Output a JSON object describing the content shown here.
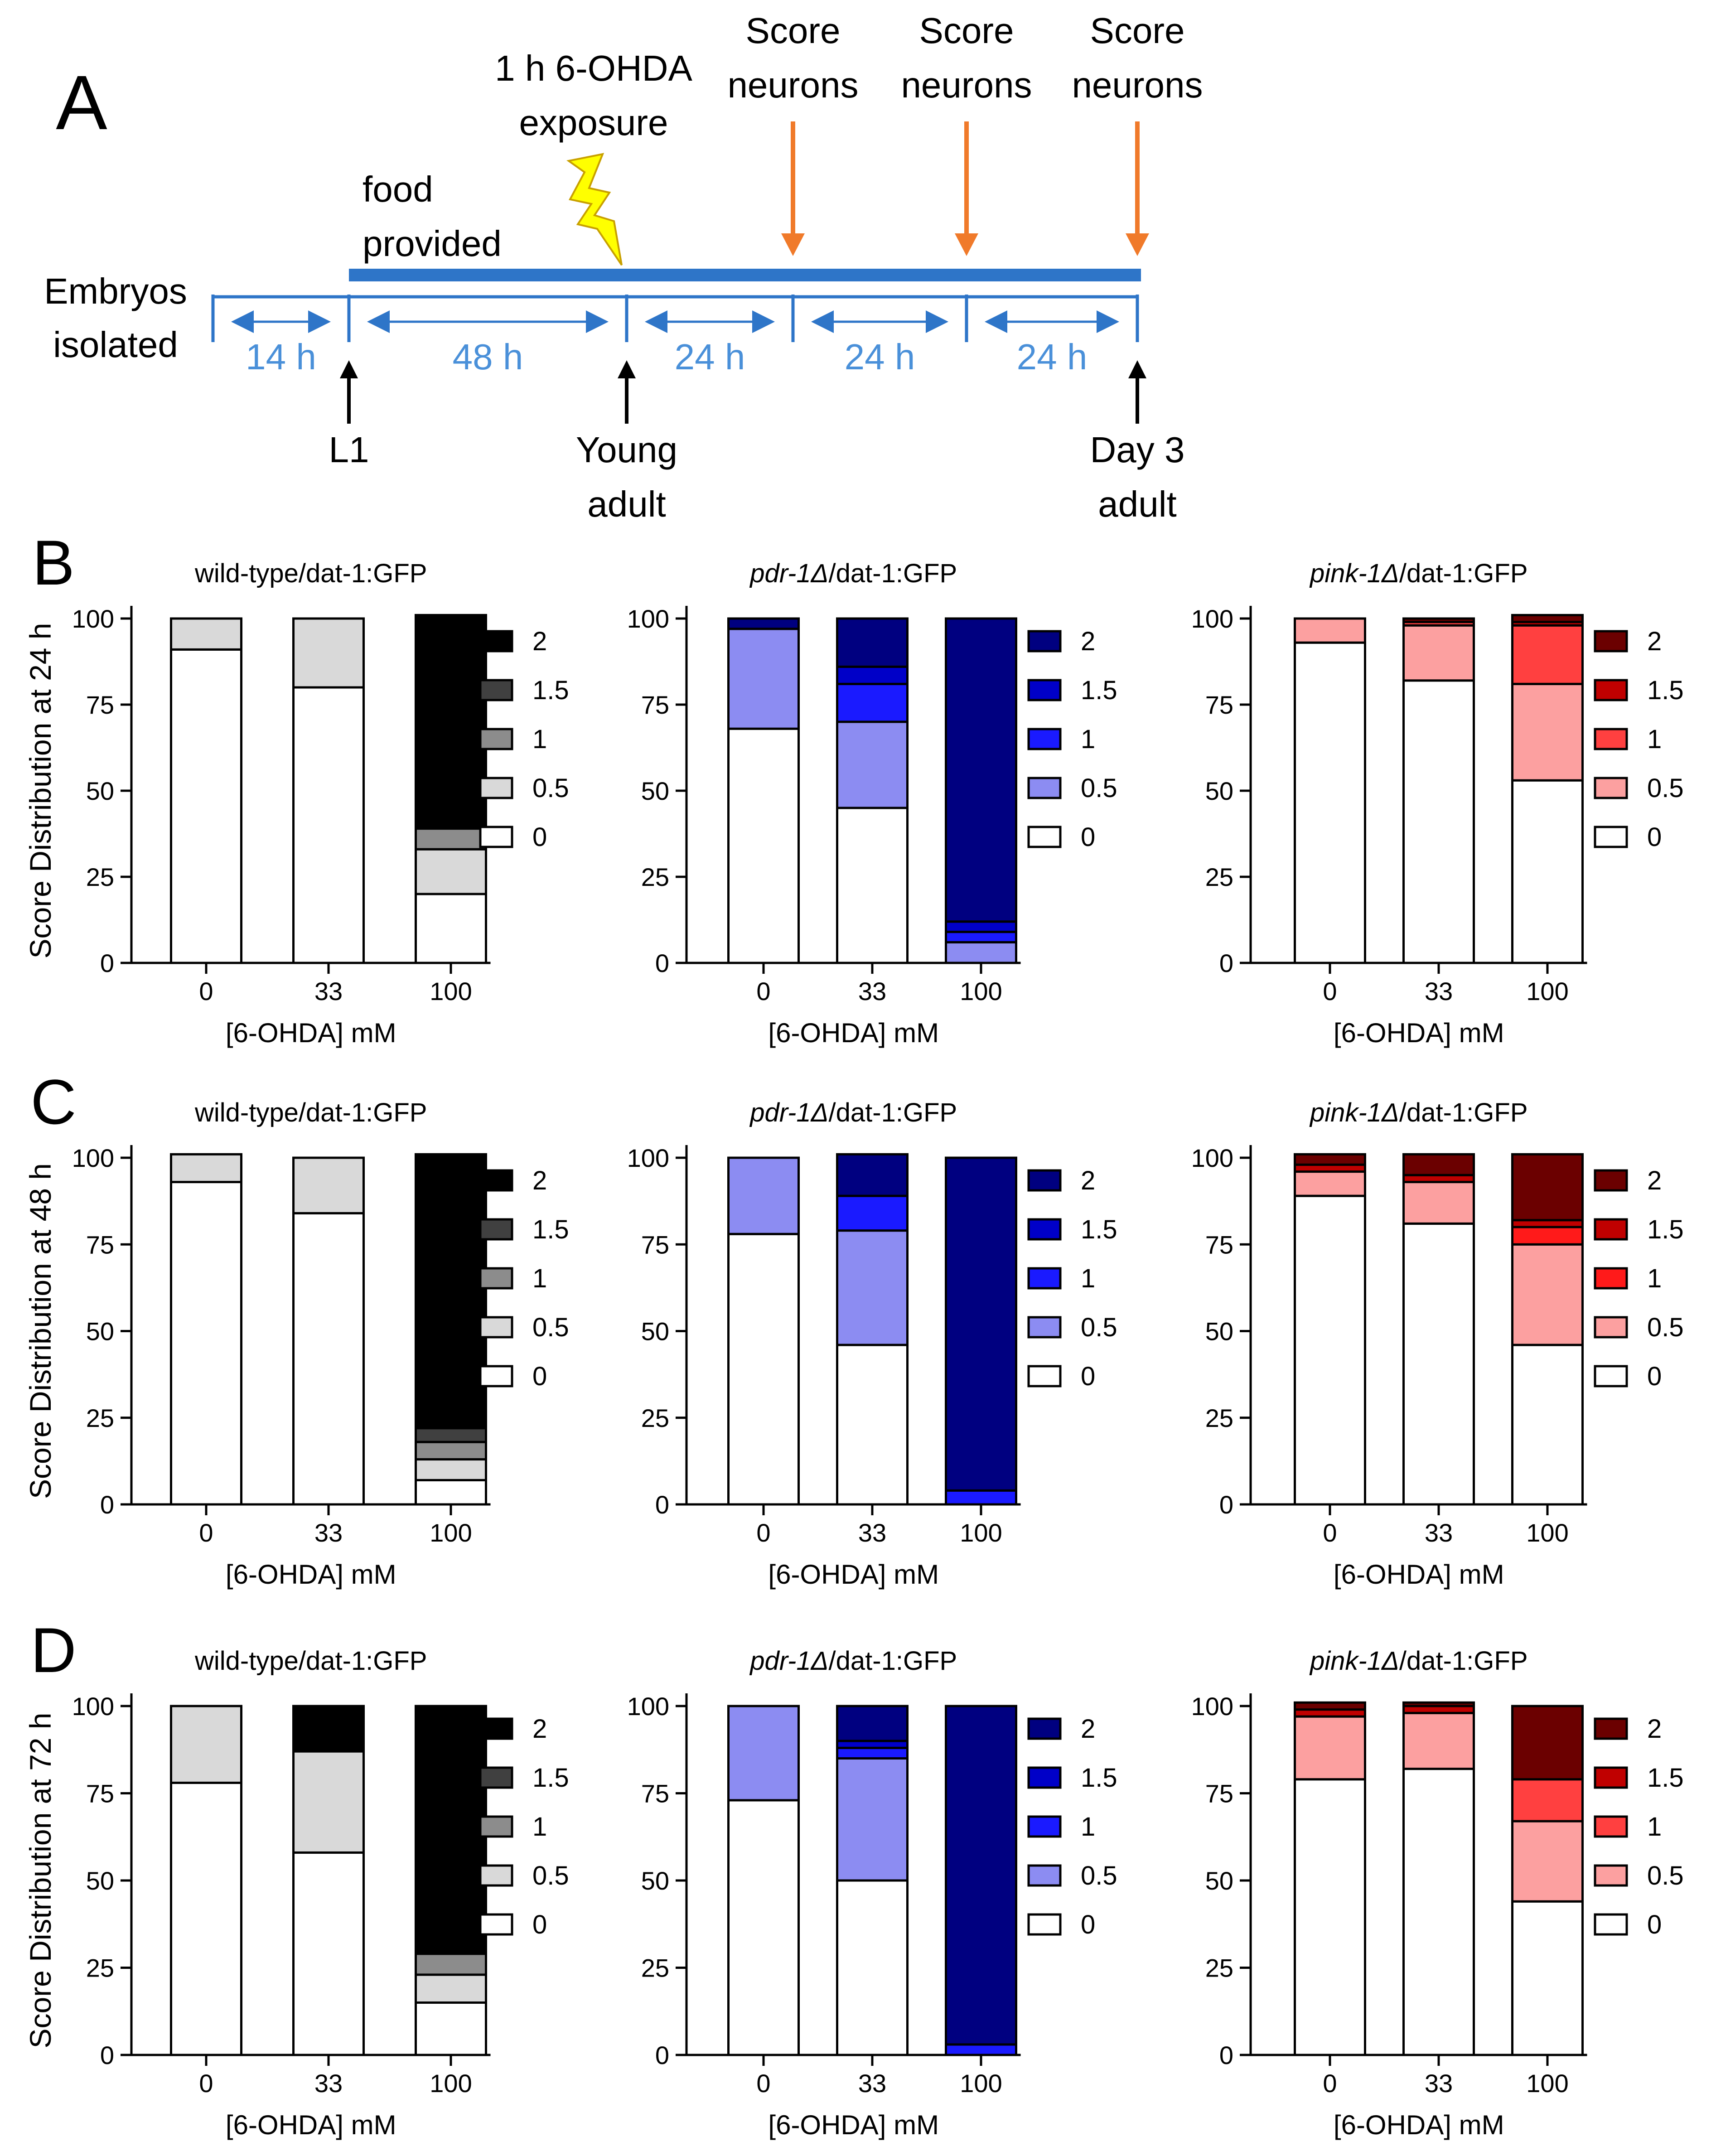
{
  "panel_a": {
    "letter": "A",
    "food_label": [
      "food",
      "provided"
    ],
    "embryos_label": [
      "Embryos",
      "isolated"
    ],
    "exposure_label": [
      "1 h 6-OHDA",
      "exposure"
    ],
    "score_label": [
      "Score",
      "neurons"
    ],
    "intervals": [
      "14 h",
      "48 h",
      "24 h",
      "24 h",
      "24 h"
    ],
    "stages": [
      [
        "L1"
      ],
      [
        "Young",
        "adult"
      ],
      [
        "Day 3",
        "adult"
      ]
    ],
    "colors": {
      "timeline": "#2e75c8",
      "interval_text": "#4a90d9",
      "score_arrow": "#f07a2a",
      "bolt": "#ffff00",
      "bolt_outline": "#c8a000"
    }
  },
  "chart_data": [
    {
      "panel": "B",
      "type": "bar",
      "stacked": true,
      "title": "wild-type/dat-1:GFP",
      "ylabel": "Score Distribution at 24 h",
      "xlabel": "[6-OHDA] mM",
      "categories": [
        "0",
        "33",
        "100"
      ],
      "ylim": [
        0,
        100
      ],
      "yticks": [
        0,
        25,
        50,
        75,
        100
      ],
      "legend_placement": "right",
      "series": [
        {
          "name": "0",
          "color": "#ffffff",
          "values": [
            91,
            80,
            20
          ]
        },
        {
          "name": "0.5",
          "color": "#d9d9d9",
          "values": [
            9,
            20,
            13
          ]
        },
        {
          "name": "1",
          "color": "#8c8c8c",
          "values": [
            0,
            0,
            6
          ]
        },
        {
          "name": "1.5",
          "color": "#404040",
          "values": [
            0,
            0,
            0
          ]
        },
        {
          "name": "2",
          "color": "#000000",
          "values": [
            0,
            0,
            62
          ]
        }
      ]
    },
    {
      "panel": "",
      "type": "bar",
      "stacked": true,
      "title": "pdr-1Δ/dat-1:GFP",
      "title_italic": "pdr-1Δ",
      "title_rest": "/dat-1:GFP",
      "ylabel": "",
      "xlabel": "[6-OHDA] mM",
      "categories": [
        "0",
        "33",
        "100"
      ],
      "ylim": [
        0,
        100
      ],
      "yticks": [
        0,
        25,
        50,
        75,
        100
      ],
      "legend_placement": "right",
      "series": [
        {
          "name": "0",
          "color": "#ffffff",
          "values": [
            68,
            45,
            0
          ]
        },
        {
          "name": "0.5",
          "color": "#8c8cf2",
          "values": [
            29,
            25,
            6
          ]
        },
        {
          "name": "1",
          "color": "#1a1aff",
          "values": [
            0,
            11,
            3
          ]
        },
        {
          "name": "1.5",
          "color": "#0000c8",
          "values": [
            0,
            5,
            3
          ]
        },
        {
          "name": "2",
          "color": "#000080",
          "values": [
            3,
            14,
            88
          ]
        }
      ]
    },
    {
      "panel": "",
      "type": "bar",
      "stacked": true,
      "title": "pink-1Δ/dat-1:GFP",
      "title_italic": "pink-1Δ",
      "title_rest": "/dat-1:GFP",
      "ylabel": "",
      "xlabel": "[6-OHDA] mM",
      "categories": [
        "0",
        "33",
        "100"
      ],
      "ylim": [
        0,
        100
      ],
      "yticks": [
        0,
        25,
        50,
        75,
        100
      ],
      "legend_placement": "right",
      "series": [
        {
          "name": "0",
          "color": "#ffffff",
          "values": [
            93,
            82,
            53
          ]
        },
        {
          "name": "0.5",
          "color": "#fca0a0",
          "values": [
            7,
            16,
            28
          ]
        },
        {
          "name": "1",
          "color": "#ff4040",
          "values": [
            0,
            1,
            17
          ]
        },
        {
          "name": "1.5",
          "color": "#c00000",
          "values": [
            0,
            0,
            1
          ]
        },
        {
          "name": "2",
          "color": "#6b0000",
          "values": [
            0,
            1,
            2
          ]
        }
      ]
    },
    {
      "panel": "C",
      "type": "bar",
      "stacked": true,
      "title": "wild-type/dat-1:GFP",
      "ylabel": "Score Distribution at 48 h",
      "xlabel": "[6-OHDA] mM",
      "categories": [
        "0",
        "33",
        "100"
      ],
      "ylim": [
        0,
        100
      ],
      "yticks": [
        0,
        25,
        50,
        75,
        100
      ],
      "legend_placement": "right",
      "series": [
        {
          "name": "0",
          "color": "#ffffff",
          "values": [
            93,
            84,
            7
          ]
        },
        {
          "name": "0.5",
          "color": "#d9d9d9",
          "values": [
            8,
            16,
            6
          ]
        },
        {
          "name": "1",
          "color": "#8c8c8c",
          "values": [
            0,
            0,
            5
          ]
        },
        {
          "name": "1.5",
          "color": "#404040",
          "values": [
            0,
            0,
            4
          ]
        },
        {
          "name": "2",
          "color": "#000000",
          "values": [
            0,
            0,
            79
          ]
        }
      ]
    },
    {
      "panel": "",
      "type": "bar",
      "stacked": true,
      "title": "pdr-1Δ/dat-1:GFP",
      "title_italic": "pdr-1Δ",
      "title_rest": "/dat-1:GFP",
      "ylabel": "",
      "xlabel": "[6-OHDA] mM",
      "categories": [
        "0",
        "33",
        "100"
      ],
      "ylim": [
        0,
        100
      ],
      "yticks": [
        0,
        25,
        50,
        75,
        100
      ],
      "legend_placement": "right",
      "series": [
        {
          "name": "0",
          "color": "#ffffff",
          "values": [
            78,
            46,
            0
          ]
        },
        {
          "name": "0.5",
          "color": "#8c8cf2",
          "values": [
            22,
            33,
            0
          ]
        },
        {
          "name": "1",
          "color": "#1a1aff",
          "values": [
            0,
            10,
            4
          ]
        },
        {
          "name": "1.5",
          "color": "#0000c8",
          "values": [
            0,
            0,
            0
          ]
        },
        {
          "name": "2",
          "color": "#000080",
          "values": [
            0,
            12,
            96
          ]
        }
      ]
    },
    {
      "panel": "",
      "type": "bar",
      "stacked": true,
      "title": "pink-1Δ/dat-1:GFP",
      "title_italic": "pink-1Δ",
      "title_rest": "/dat-1:GFP",
      "ylabel": "",
      "xlabel": "[6-OHDA] mM",
      "categories": [
        "0",
        "33",
        "100"
      ],
      "ylim": [
        0,
        100
      ],
      "yticks": [
        0,
        25,
        50,
        75,
        100
      ],
      "legend_placement": "right",
      "series": [
        {
          "name": "0",
          "color": "#ffffff",
          "values": [
            89,
            81,
            46
          ]
        },
        {
          "name": "0.5",
          "color": "#fca0a0",
          "values": [
            7,
            12,
            29
          ]
        },
        {
          "name": "1",
          "color": "#ff1a1a",
          "values": [
            0,
            0,
            5
          ]
        },
        {
          "name": "1.5",
          "color": "#c00000",
          "values": [
            2,
            2,
            2
          ]
        },
        {
          "name": "2",
          "color": "#6b0000",
          "values": [
            3,
            6,
            19
          ]
        }
      ]
    },
    {
      "panel": "D",
      "type": "bar",
      "stacked": true,
      "title": "wild-type/dat-1:GFP",
      "ylabel": "Score Distribution at 72 h",
      "xlabel": "[6-OHDA] mM",
      "categories": [
        "0",
        "33",
        "100"
      ],
      "ylim": [
        0,
        100
      ],
      "yticks": [
        0,
        25,
        50,
        75,
        100
      ],
      "legend_placement": "right",
      "series": [
        {
          "name": "0",
          "color": "#ffffff",
          "values": [
            78,
            58,
            15
          ]
        },
        {
          "name": "0.5",
          "color": "#d9d9d9",
          "values": [
            22,
            29,
            8
          ]
        },
        {
          "name": "1",
          "color": "#8c8c8c",
          "values": [
            0,
            0,
            6
          ]
        },
        {
          "name": "1.5",
          "color": "#404040",
          "values": [
            0,
            0,
            0
          ]
        },
        {
          "name": "2",
          "color": "#000000",
          "values": [
            0,
            13,
            71
          ]
        }
      ]
    },
    {
      "panel": "",
      "type": "bar",
      "stacked": true,
      "title": "pdr-1Δ/dat-1:GFP",
      "title_italic": "pdr-1Δ",
      "title_rest": "/dat-1:GFP",
      "ylabel": "",
      "xlabel": "[6-OHDA] mM",
      "categories": [
        "0",
        "33",
        "100"
      ],
      "ylim": [
        0,
        100
      ],
      "yticks": [
        0,
        25,
        50,
        75,
        100
      ],
      "legend_placement": "right",
      "series": [
        {
          "name": "0",
          "color": "#ffffff",
          "values": [
            73,
            50,
            0
          ]
        },
        {
          "name": "0.5",
          "color": "#8c8cf2",
          "values": [
            27,
            35,
            0
          ]
        },
        {
          "name": "1",
          "color": "#1a1aff",
          "values": [
            0,
            3,
            3
          ]
        },
        {
          "name": "1.5",
          "color": "#0000c8",
          "values": [
            0,
            2,
            0
          ]
        },
        {
          "name": "2",
          "color": "#000080",
          "values": [
            0,
            10,
            97
          ]
        }
      ]
    },
    {
      "panel": "",
      "type": "bar",
      "stacked": true,
      "title": "pink-1Δ/dat-1:GFP",
      "title_italic": "pink-1Δ",
      "title_rest": "/dat-1:GFP",
      "ylabel": "",
      "xlabel": "[6-OHDA] mM",
      "categories": [
        "0",
        "33",
        "100"
      ],
      "ylim": [
        0,
        100
      ],
      "yticks": [
        0,
        25,
        50,
        75,
        100
      ],
      "legend_placement": "right",
      "series": [
        {
          "name": "0",
          "color": "#ffffff",
          "values": [
            79,
            82,
            44
          ]
        },
        {
          "name": "0.5",
          "color": "#fca0a0",
          "values": [
            18,
            16,
            23
          ]
        },
        {
          "name": "1",
          "color": "#ff4040",
          "values": [
            0,
            0,
            12
          ]
        },
        {
          "name": "1.5",
          "color": "#c00000",
          "values": [
            2,
            2,
            0
          ]
        },
        {
          "name": "2",
          "color": "#6b0000",
          "values": [
            2,
            1,
            21
          ]
        }
      ]
    }
  ]
}
